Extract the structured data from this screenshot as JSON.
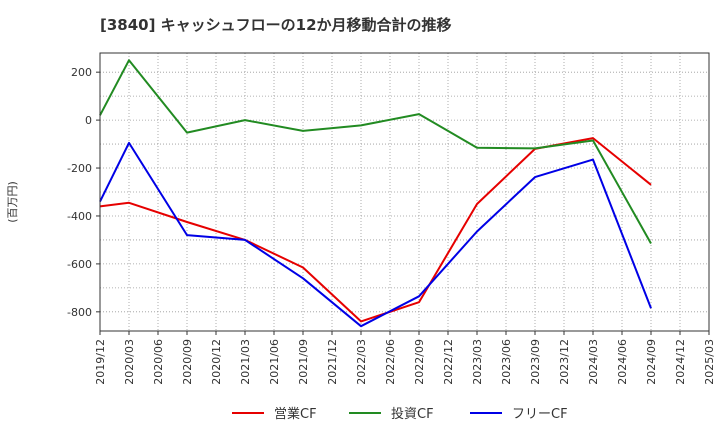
{
  "chart_data": {
    "type": "line",
    "title": "[3840]  キャッシュフローの12か月移動合計の推移",
    "ylabel": "(百万円)",
    "xlabel": "",
    "ylim": [
      -880,
      280
    ],
    "yticks": [
      200,
      0,
      -200,
      -400,
      -600,
      -800
    ],
    "grid": true,
    "legend_position": "bottom",
    "categories": [
      "2019/12",
      "2020/03",
      "2020/06",
      "2020/09",
      "2020/12",
      "2021/03",
      "2021/06",
      "2021/09",
      "2021/12",
      "2022/03",
      "2022/06",
      "2022/09",
      "2022/12",
      "2023/03",
      "2023/06",
      "2023/09",
      "2023/12",
      "2024/03",
      "2024/06",
      "2024/09",
      "2024/12",
      "2025/03"
    ],
    "series": [
      {
        "name": "営業CF",
        "color": "#e60000",
        "values": [
          -360,
          -345,
          null,
          -425,
          null,
          -500,
          null,
          -615,
          null,
          -840,
          null,
          -760,
          null,
          -350,
          null,
          -120,
          null,
          -75,
          null,
          -270,
          null,
          null
        ]
      },
      {
        "name": "投資CF",
        "color": "#228b22",
        "values": [
          20,
          250,
          null,
          -52,
          null,
          0,
          null,
          -45,
          null,
          -22,
          null,
          25,
          null,
          -115,
          null,
          -118,
          null,
          -85,
          null,
          -515,
          null,
          null
        ]
      },
      {
        "name": "フリーCF",
        "color": "#0000e6",
        "values": [
          -340,
          -95,
          null,
          -480,
          null,
          -500,
          null,
          -660,
          null,
          -860,
          null,
          -735,
          null,
          -465,
          null,
          -238,
          null,
          -165,
          null,
          -785,
          null,
          null
        ]
      }
    ]
  }
}
